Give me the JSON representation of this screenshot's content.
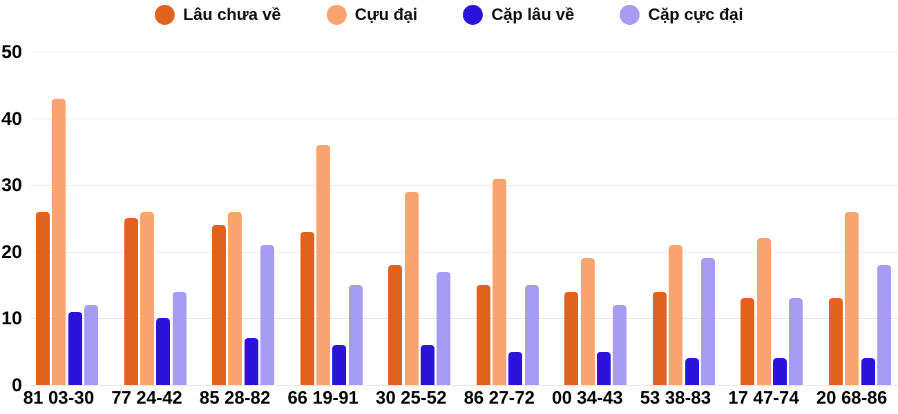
{
  "chart_data": {
    "type": "bar",
    "title": "",
    "xlabel": "",
    "ylabel": "",
    "categories": [
      "81 03-30",
      "77 24-42",
      "85 28-82",
      "66 19-91",
      "30 25-52",
      "86 27-72",
      "00 34-43",
      "53 38-83",
      "17 47-74",
      "20 68-86"
    ],
    "series": [
      {
        "name": "Lâu chưa về",
        "color": "#e0621c",
        "values": [
          26,
          25,
          24,
          23,
          18,
          15,
          14,
          14,
          13,
          13
        ]
      },
      {
        "name": "Cựu đại",
        "color": "#fca46f",
        "values": [
          43,
          26,
          26,
          36,
          29,
          31,
          19,
          21,
          22,
          26
        ]
      },
      {
        "name": "Cặp lâu về",
        "color": "#2b13db",
        "values": [
          11,
          10,
          7,
          6,
          6,
          5,
          5,
          4,
          4,
          4
        ]
      },
      {
        "name": "Cặp cực đại",
        "color": "#a69cf3",
        "values": [
          12,
          14,
          21,
          15,
          17,
          15,
          12,
          19,
          13,
          18
        ]
      }
    ],
    "ylim": [
      0,
      50
    ],
    "yticks": [
      0,
      10,
      20,
      30,
      40,
      50
    ],
    "grid": true,
    "legend_position": "top",
    "colors": {
      "grid": "#e4e4e4",
      "text": "#000000",
      "background": "#ffffff"
    }
  }
}
